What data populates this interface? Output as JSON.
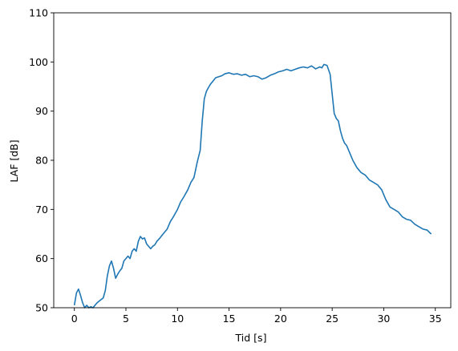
{
  "chart_data": {
    "type": "line",
    "title": "",
    "xlabel": "Tid [s]",
    "ylabel": "LAF [dB]",
    "xlim": [
      -2,
      36.5
    ],
    "ylim": [
      50,
      110
    ],
    "xticks": [
      0,
      5,
      10,
      15,
      20,
      25,
      30,
      35
    ],
    "yticks": [
      50,
      60,
      70,
      80,
      90,
      100,
      110
    ],
    "grid": false,
    "legend": "none",
    "series": [
      {
        "color": "#1f77b4",
        "x": [
          0.0,
          0.2,
          0.4,
          0.6,
          0.8,
          1.0,
          1.2,
          1.4,
          1.6,
          1.8,
          2.0,
          2.2,
          2.5,
          2.8,
          3.0,
          3.2,
          3.4,
          3.6,
          3.8,
          4.0,
          4.2,
          4.4,
          4.6,
          4.8,
          5.0,
          5.2,
          5.4,
          5.6,
          5.8,
          6.0,
          6.2,
          6.4,
          6.6,
          6.8,
          7.0,
          7.2,
          7.4,
          7.6,
          7.8,
          8.0,
          8.3,
          8.6,
          9.0,
          9.3,
          9.6,
          10.0,
          10.3,
          10.6,
          11.0,
          11.3,
          11.6,
          11.9,
          12.2,
          12.4,
          12.6,
          12.8,
          13.0,
          13.2,
          13.4,
          13.7,
          14.0,
          14.3,
          14.6,
          15.0,
          15.4,
          15.8,
          16.2,
          16.6,
          17.0,
          17.4,
          17.8,
          18.2,
          18.6,
          19.0,
          19.4,
          19.8,
          20.2,
          20.6,
          21.0,
          21.4,
          21.8,
          22.2,
          22.6,
          23.0,
          23.4,
          23.8,
          24.0,
          24.2,
          24.5,
          24.8,
          25.0,
          25.2,
          25.4,
          25.6,
          25.8,
          26.0,
          26.2,
          26.4,
          26.6,
          26.8,
          27.0,
          27.4,
          27.8,
          28.2,
          28.6,
          29.0,
          29.4,
          29.8,
          30.2,
          30.6,
          31.0,
          31.4,
          31.8,
          32.2,
          32.6,
          33.0,
          33.4,
          33.8,
          34.2,
          34.6
        ],
        "y": [
          50.5,
          53.0,
          53.8,
          52.5,
          51.0,
          50.0,
          50.5,
          50.0,
          50.2,
          50.0,
          50.5,
          51.0,
          51.5,
          52.0,
          53.5,
          56.5,
          58.5,
          59.5,
          58.0,
          56.0,
          56.8,
          57.5,
          58.0,
          59.5,
          60.0,
          60.5,
          60.0,
          61.5,
          62.0,
          61.5,
          63.5,
          64.5,
          64.0,
          64.2,
          63.0,
          62.5,
          62.0,
          62.5,
          62.8,
          63.5,
          64.2,
          65.0,
          66.0,
          67.5,
          68.5,
          70.0,
          71.5,
          72.5,
          74.0,
          75.5,
          76.5,
          79.5,
          82.0,
          88.0,
          92.5,
          94.0,
          94.8,
          95.5,
          96.0,
          96.8,
          97.0,
          97.2,
          97.6,
          97.8,
          97.5,
          97.6,
          97.3,
          97.5,
          97.0,
          97.2,
          97.0,
          96.5,
          96.8,
          97.3,
          97.6,
          98.0,
          98.2,
          98.5,
          98.2,
          98.5,
          98.8,
          99.0,
          98.8,
          99.2,
          98.6,
          99.0,
          98.8,
          99.5,
          99.3,
          97.5,
          93.5,
          89.5,
          88.5,
          88.0,
          86.0,
          84.5,
          83.5,
          83.0,
          82.0,
          81.0,
          80.0,
          78.5,
          77.5,
          77.0,
          76.0,
          75.5,
          75.0,
          74.0,
          72.0,
          70.5,
          70.0,
          69.5,
          68.5,
          68.0,
          67.8,
          67.0,
          66.5,
          66.0,
          65.8,
          65.0
        ]
      }
    ]
  }
}
